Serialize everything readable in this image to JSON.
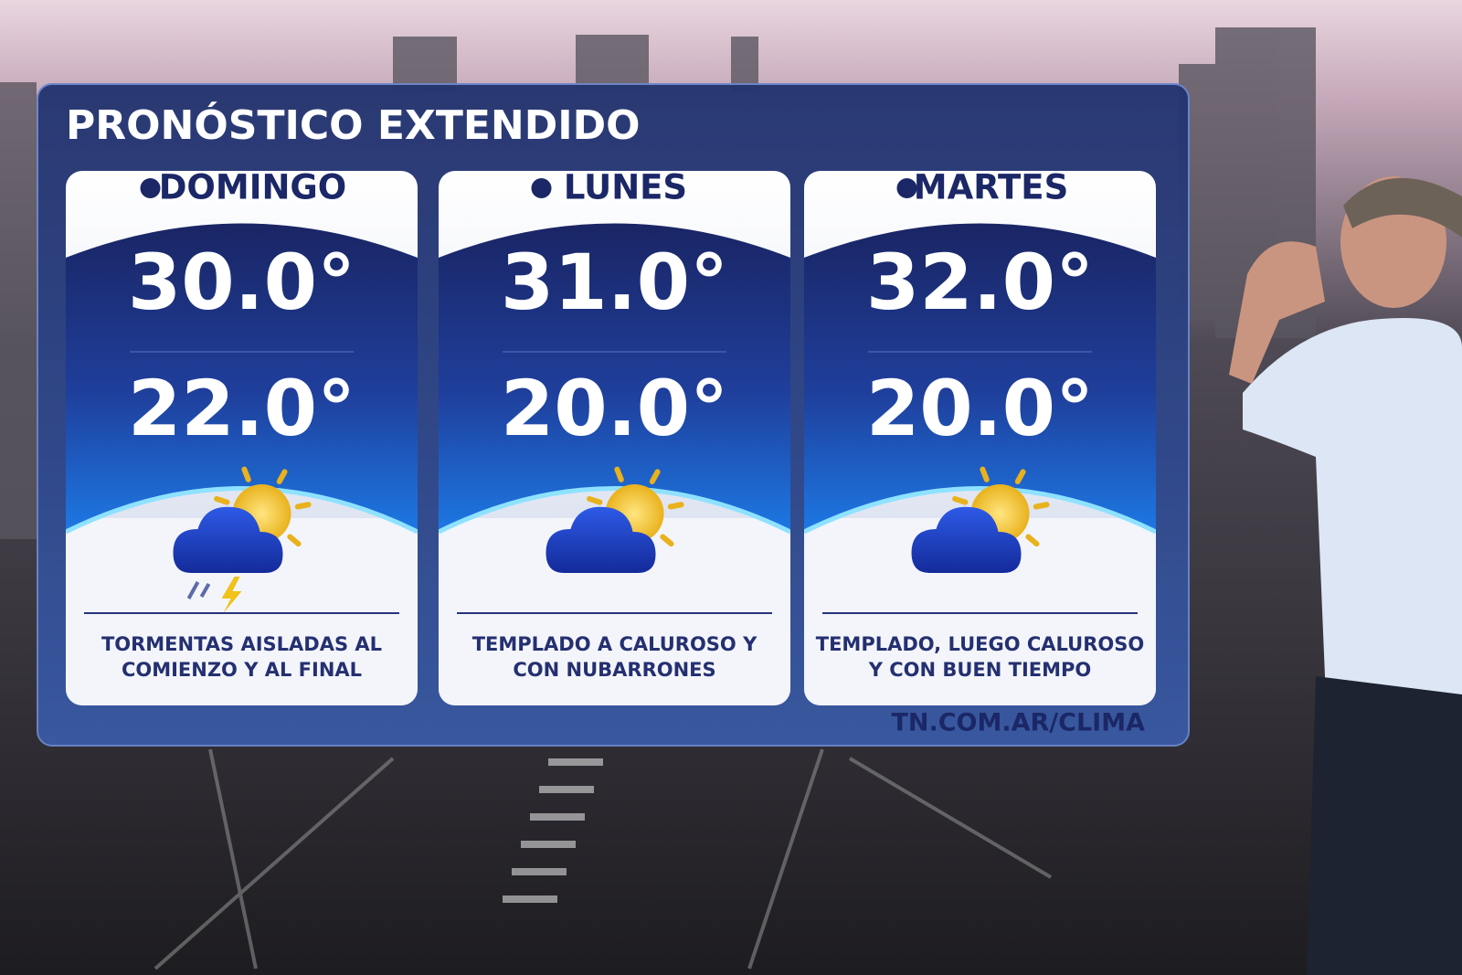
{
  "header": {
    "title": "PRONÓSTICO EXTENDIDO"
  },
  "days": [
    {
      "name": "DOMINGO",
      "max": "30.0°",
      "min": "22.0°",
      "icon": "storm",
      "lines": [
        "TORMENTAS AISLADAS AL",
        "COMIENZO Y AL FINAL"
      ]
    },
    {
      "name": "LUNES",
      "max": "31.0°",
      "min": "20.0°",
      "icon": "partly",
      "lines": [
        "TEMPLADO A CALUROSO Y",
        "CON NUBARRONES"
      ]
    },
    {
      "name": "MARTES",
      "max": "32.0°",
      "min": "20.0°",
      "icon": "partly",
      "lines": [
        "TEMPLADO, LUEGO CALUROSO",
        "Y CON BUEN TIEMPO"
      ]
    }
  ],
  "footer": {
    "url": "TN.COM.AR/CLIMA"
  }
}
